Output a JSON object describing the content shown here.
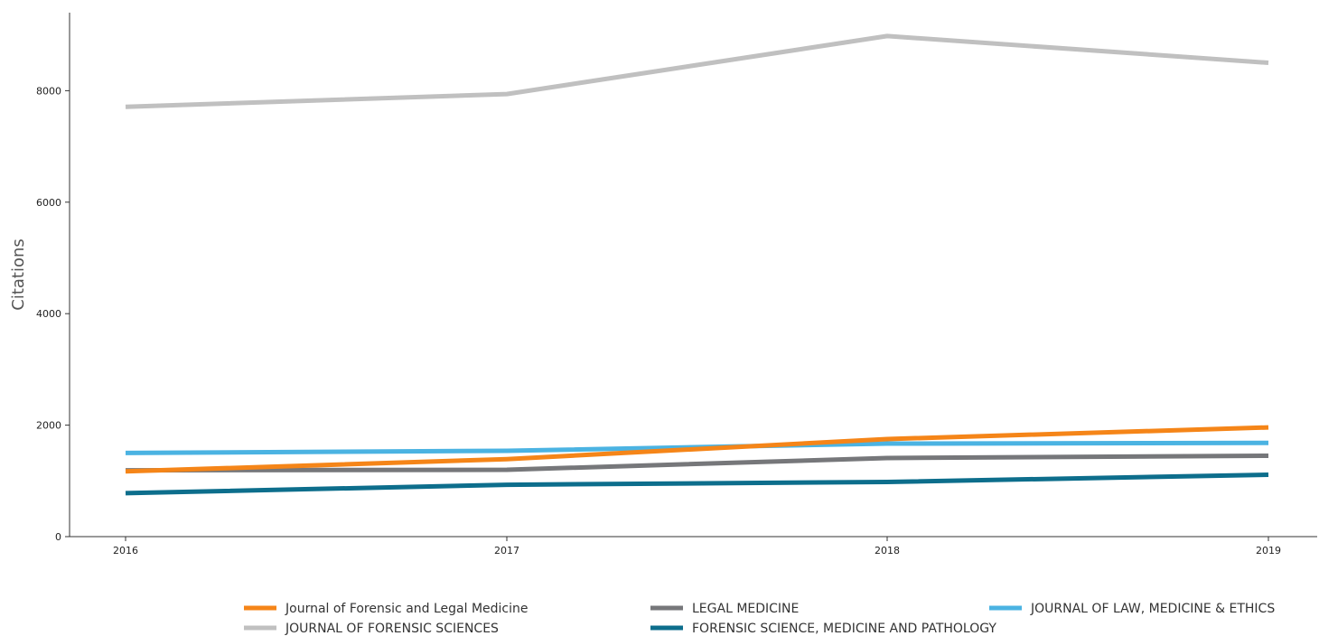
{
  "chart_data": {
    "type": "line",
    "title": "",
    "xlabel": "",
    "ylabel": "Citations",
    "x": [
      "2016",
      "2017",
      "2018",
      "2019"
    ],
    "ylim": [
      0,
      9400
    ],
    "yticks": [
      "0",
      "2000",
      "4000",
      "6000",
      "8000"
    ],
    "grid": false,
    "legend_position": "bottom",
    "series": [
      {
        "name": "Journal of Forensic and Legal Medicine",
        "color": "#f58518",
        "values": [
          1170,
          1390,
          1750,
          1960
        ]
      },
      {
        "name": "JOURNAL OF FORENSIC SCIENCES",
        "color": "#c0c0c0",
        "values": [
          7710,
          7940,
          8980,
          8500
        ]
      },
      {
        "name": "LEGAL MEDICINE",
        "color": "#76777a",
        "values": [
          1190,
          1200,
          1410,
          1450
        ]
      },
      {
        "name": "FORENSIC SCIENCE, MEDICINE AND PATHOLOGY",
        "color": "#0d6e8c",
        "values": [
          780,
          930,
          980,
          1110
        ]
      },
      {
        "name": "JOURNAL OF LAW, MEDICINE & ETHICS",
        "color": "#4bb3e2",
        "values": [
          1500,
          1540,
          1670,
          1680
        ]
      }
    ]
  }
}
